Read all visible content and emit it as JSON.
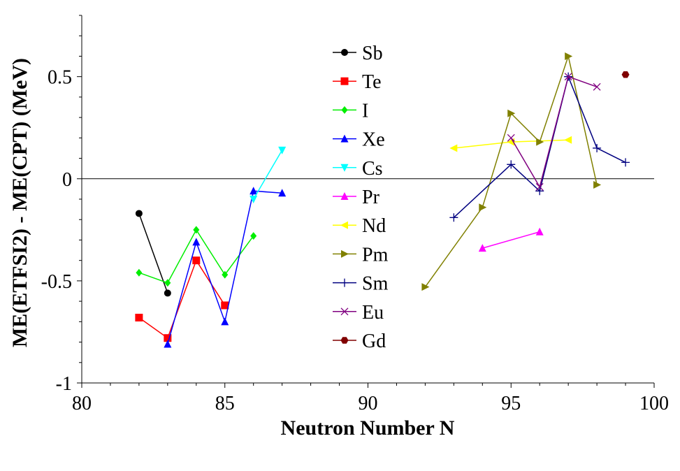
{
  "chart_data": {
    "type": "line",
    "title": "",
    "xlabel": "Neutron Number N",
    "ylabel": "ME(ETFSI2) - ME(CPT) (MeV)",
    "xlim": [
      80,
      100
    ],
    "ylim": [
      -1,
      0.8
    ],
    "xticks": [
      80,
      85,
      90,
      95,
      100
    ],
    "xtick_labels": [
      "80",
      "85",
      "90",
      "95",
      "100"
    ],
    "yticks": [
      -1,
      -0.5,
      0,
      0.5
    ],
    "ytick_labels": [
      "-1",
      "-0.5",
      "0",
      "0.5"
    ],
    "zero_line": true,
    "grid": false,
    "legend_position": "top-center",
    "series": [
      {
        "name": "Sb",
        "color": "#000000",
        "marker": "circle",
        "x": [
          82,
          83
        ],
        "y": [
          -0.17,
          -0.56
        ]
      },
      {
        "name": "Te",
        "color": "#ff0000",
        "marker": "square",
        "x": [
          82,
          83,
          84,
          85
        ],
        "y": [
          -0.68,
          -0.78,
          -0.4,
          -0.62
        ]
      },
      {
        "name": "I",
        "color": "#00ee00",
        "marker": "diamond",
        "x": [
          82,
          83,
          84,
          85,
          86
        ],
        "y": [
          -0.46,
          -0.51,
          -0.25,
          -0.47,
          -0.28
        ]
      },
      {
        "name": "Xe",
        "color": "#0000ff",
        "marker": "triangle-up",
        "x": [
          83,
          84,
          85,
          86,
          87
        ],
        "y": [
          -0.81,
          -0.31,
          -0.7,
          -0.06,
          -0.07
        ]
      },
      {
        "name": "Cs",
        "color": "#00ffff",
        "marker": "triangle-down",
        "x": [
          86,
          87
        ],
        "y": [
          -0.1,
          0.14
        ]
      },
      {
        "name": "Pr",
        "color": "#ff00ff",
        "marker": "triangle-up",
        "x": [
          94,
          96
        ],
        "y": [
          -0.34,
          -0.26
        ]
      },
      {
        "name": "Nd",
        "color": "#ffff00",
        "marker": "triangle-left",
        "x": [
          93,
          95,
          97
        ],
        "y": [
          0.15,
          0.18,
          0.19
        ]
      },
      {
        "name": "Pm",
        "color": "#808000",
        "marker": "triangle-right",
        "x": [
          92,
          94,
          95,
          96,
          97,
          98
        ],
        "y": [
          -0.53,
          -0.14,
          0.32,
          0.18,
          0.6,
          -0.03
        ]
      },
      {
        "name": "Sm",
        "color": "#000080",
        "marker": "plus",
        "x": [
          93,
          95,
          96,
          97,
          98,
          99
        ],
        "y": [
          -0.19,
          0.07,
          -0.06,
          0.5,
          0.15,
          0.08
        ]
      },
      {
        "name": "Eu",
        "color": "#800080",
        "marker": "cross",
        "x": [
          95,
          96,
          97,
          98
        ],
        "y": [
          0.2,
          -0.04,
          0.5,
          0.45
        ]
      },
      {
        "name": "Gd",
        "color": "#800000",
        "marker": "hexagon",
        "x": [
          99
        ],
        "y": [
          0.51
        ]
      }
    ]
  }
}
